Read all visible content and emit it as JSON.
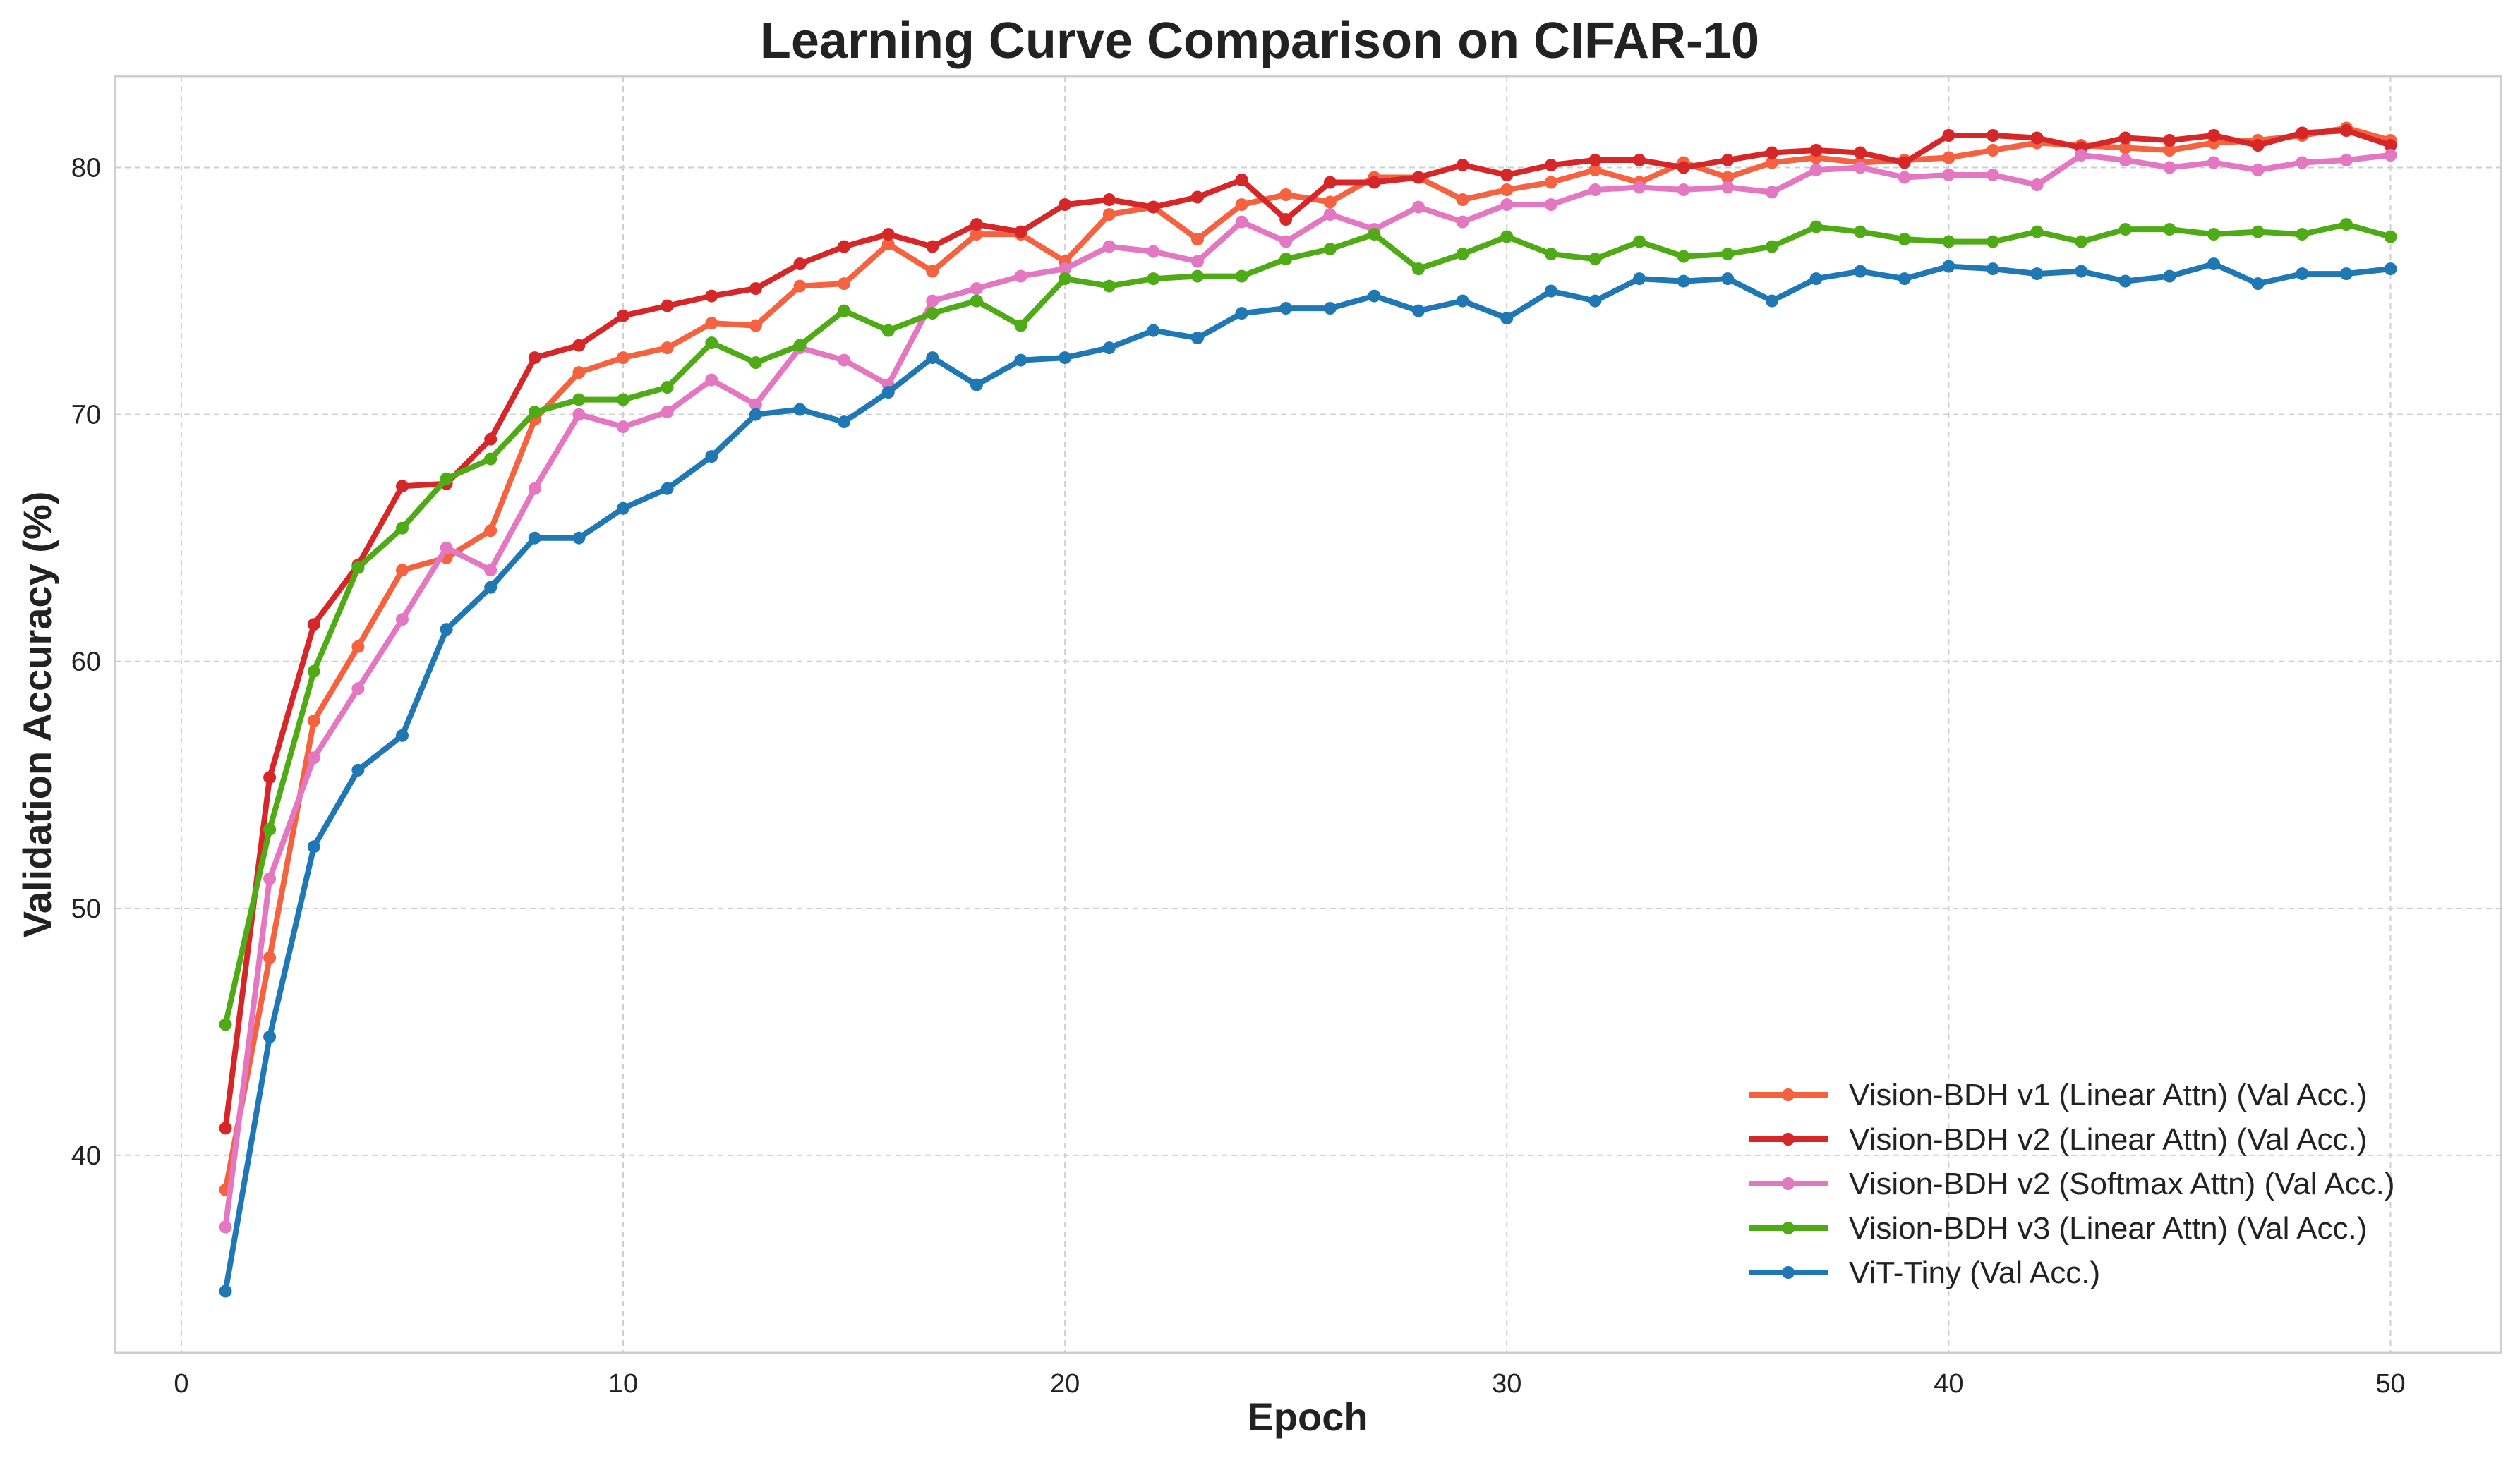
{
  "chart_data": {
    "type": "line",
    "title": "Learning Curve Comparison on CIFAR-10",
    "xlabel": "Epoch",
    "ylabel": "Validation Accuracy (%)",
    "xlim": [
      -1.5,
      52.5
    ],
    "ylim": [
      32.0,
      83.7
    ],
    "xticks": [
      0,
      10,
      20,
      30,
      40,
      50
    ],
    "yticks": [
      40,
      50,
      60,
      70,
      80
    ],
    "grid": true,
    "legend_position": "lower-right",
    "x": [
      1,
      2,
      3,
      4,
      5,
      6,
      7,
      8,
      9,
      10,
      11,
      12,
      13,
      14,
      15,
      16,
      17,
      18,
      19,
      20,
      21,
      22,
      23,
      24,
      25,
      26,
      27,
      28,
      29,
      30,
      31,
      32,
      33,
      34,
      35,
      36,
      37,
      38,
      39,
      40,
      41,
      42,
      43,
      44,
      45,
      46,
      47,
      48,
      49,
      50
    ],
    "series": [
      {
        "name": "Vision-BDH v1 (Linear Attn) (Val Acc.)",
        "color": "#f4623f",
        "values": [
          38.6,
          48.0,
          57.6,
          60.6,
          63.7,
          64.2,
          65.3,
          69.8,
          71.7,
          72.3,
          72.7,
          73.7,
          73.6,
          75.2,
          75.3,
          76.9,
          75.8,
          77.3,
          77.3,
          76.2,
          78.1,
          78.4,
          77.1,
          78.5,
          78.9,
          78.6,
          79.6,
          79.6,
          78.7,
          79.1,
          79.4,
          79.9,
          79.4,
          80.2,
          79.6,
          80.2,
          80.4,
          80.2,
          80.3,
          80.4,
          80.7,
          81.0,
          80.9,
          80.8,
          80.7,
          81.0,
          81.1,
          81.3,
          81.6,
          81.1
        ]
      },
      {
        "name": "Vision-BDH v2 (Linear Attn) (Val Acc.)",
        "color": "#d62728",
        "values": [
          41.1,
          55.3,
          61.5,
          63.9,
          67.1,
          67.2,
          69.0,
          72.3,
          72.8,
          74.0,
          74.4,
          74.8,
          75.1,
          76.1,
          76.8,
          77.3,
          76.8,
          77.7,
          77.4,
          78.5,
          78.7,
          78.4,
          78.8,
          79.5,
          77.9,
          79.4,
          79.4,
          79.6,
          80.1,
          79.7,
          80.1,
          80.3,
          80.3,
          80.0,
          80.3,
          80.6,
          80.7,
          80.6,
          80.2,
          81.3,
          81.3,
          81.2,
          80.8,
          81.2,
          81.1,
          81.3,
          80.9,
          81.4,
          81.5,
          80.9
        ]
      },
      {
        "name": "Vision-BDH v2 (Softmax Attn) (Val Acc.)",
        "color": "#e377c2",
        "values": [
          37.1,
          51.2,
          56.1,
          58.9,
          61.7,
          64.6,
          63.7,
          67.0,
          70.0,
          69.5,
          70.1,
          71.4,
          70.4,
          72.7,
          72.2,
          71.2,
          74.6,
          75.1,
          75.6,
          75.9,
          76.8,
          76.6,
          76.2,
          77.8,
          77.0,
          78.1,
          77.5,
          78.4,
          77.8,
          78.5,
          78.5,
          79.1,
          79.2,
          79.1,
          79.2,
          79.0,
          79.9,
          80.0,
          79.6,
          79.7,
          79.7,
          79.3,
          80.5,
          80.3,
          80.0,
          80.2,
          79.9,
          80.2,
          80.3,
          80.5
        ]
      },
      {
        "name": "Vision-BDH v3 (Linear Attn) (Val Acc.)",
        "color": "#4eab15",
        "values": [
          45.3,
          53.2,
          59.6,
          63.8,
          65.4,
          67.4,
          68.2,
          70.1,
          70.6,
          70.6,
          71.1,
          72.9,
          72.1,
          72.8,
          74.2,
          73.4,
          74.1,
          74.6,
          73.6,
          75.5,
          75.2,
          75.5,
          75.6,
          75.6,
          76.3,
          76.7,
          77.3,
          75.9,
          76.5,
          77.2,
          76.5,
          76.3,
          77.0,
          76.4,
          76.5,
          76.8,
          77.6,
          77.4,
          77.1,
          77.0,
          77.0,
          77.4,
          77.0,
          77.5,
          77.5,
          77.3,
          77.4,
          77.3,
          77.7,
          77.2
        ]
      },
      {
        "name": "ViT-Tiny (Val Acc.)",
        "color": "#1f77b4",
        "values": [
          34.5,
          44.8,
          52.5,
          55.6,
          57.0,
          61.3,
          63.0,
          65.0,
          65.0,
          66.2,
          67.0,
          68.3,
          70.0,
          70.2,
          69.7,
          70.9,
          72.3,
          71.2,
          72.2,
          72.3,
          72.7,
          73.4,
          73.1,
          74.1,
          74.3,
          74.3,
          74.8,
          74.2,
          74.6,
          73.9,
          75.0,
          74.6,
          75.5,
          75.4,
          75.5,
          74.6,
          75.5,
          75.8,
          75.5,
          76.0,
          75.9,
          75.7,
          75.8,
          75.4,
          75.6,
          76.1,
          75.3,
          75.7,
          75.7,
          75.9
        ]
      }
    ]
  }
}
